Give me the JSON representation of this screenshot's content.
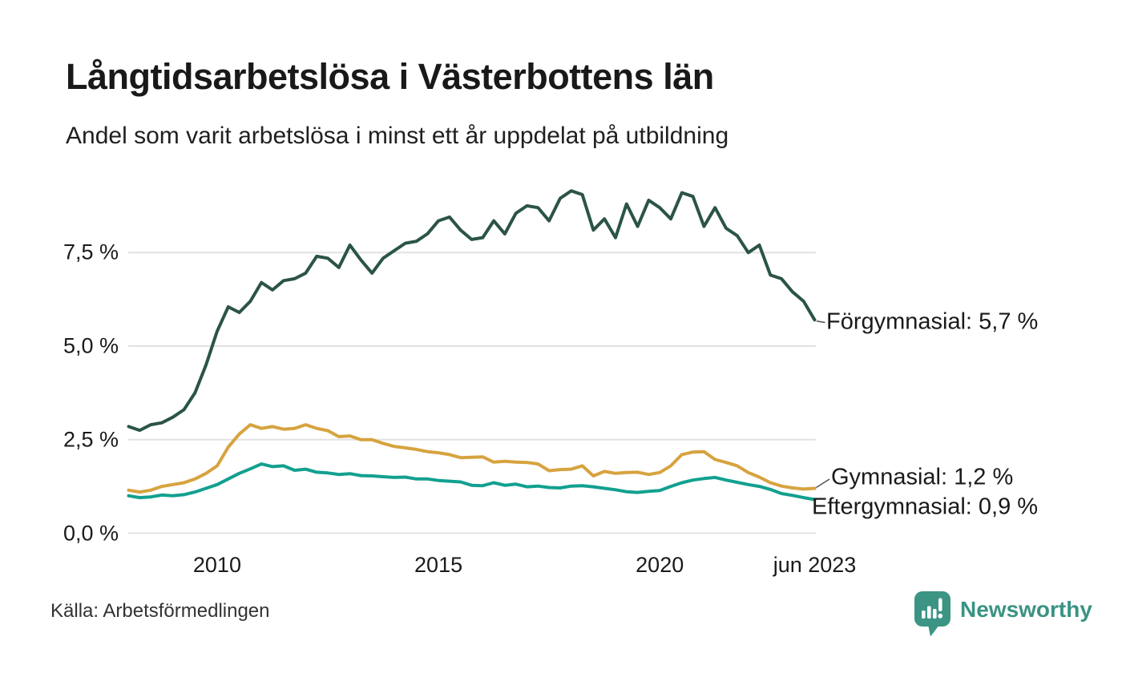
{
  "chart_data": {
    "type": "line",
    "title": "Långtidsarbetslösa i Västerbottens län",
    "subtitle": "Andel som varit arbetslösa i minst ett år uppdelat på utbildning",
    "xlabel": "",
    "ylabel": "",
    "x_unit": "decimal year, quarterly samples of monthly series",
    "x_start": 2008.0,
    "x_step": 0.25,
    "xlim": [
      2008.0,
      2023.5
    ],
    "ylim": [
      0,
      9.6
    ],
    "grid": "horizontal",
    "legend_position": "end-of-line labels, right side",
    "gridline_color": "#e2e2e2",
    "y_ticks": [
      {
        "value": 7.5,
        "label": "7,5 %"
      },
      {
        "value": 5.0,
        "label": "5,0 %"
      },
      {
        "value": 2.5,
        "label": "2,5 %"
      },
      {
        "value": 0.0,
        "label": "0,0 %"
      }
    ],
    "x_ticks": [
      {
        "value": 2010,
        "label": "2010"
      },
      {
        "value": 2015,
        "label": "2015"
      },
      {
        "value": 2020,
        "label": "2020"
      },
      {
        "value": 2023.5,
        "label": "jun 2023"
      }
    ],
    "series": [
      {
        "name": "Förgymnasial",
        "color": "#2b5446",
        "end_label": "Förgymnasial: 5,7 %",
        "end_value": 5.7,
        "values": [
          2.85,
          2.75,
          2.9,
          2.95,
          3.1,
          3.3,
          3.75,
          4.5,
          5.4,
          6.05,
          5.9,
          6.2,
          6.7,
          6.5,
          6.75,
          6.8,
          6.95,
          7.4,
          7.35,
          7.1,
          7.7,
          7.3,
          6.95,
          7.35,
          7.55,
          7.75,
          7.8,
          8.0,
          8.35,
          8.45,
          8.1,
          7.85,
          7.9,
          8.35,
          8.0,
          8.55,
          8.75,
          8.7,
          8.35,
          8.95,
          9.15,
          9.05,
          8.1,
          8.4,
          7.9,
          8.8,
          8.2,
          8.9,
          8.7,
          8.4,
          9.1,
          9.0,
          8.2,
          8.7,
          8.15,
          7.95,
          7.5,
          7.7,
          6.9,
          6.8,
          6.45,
          6.2,
          5.7
        ]
      },
      {
        "name": "Gymnasial",
        "color": "#d7a33f",
        "end_label": "Gymnasial: 1,2 %",
        "end_value": 1.2,
        "values": [
          1.15,
          1.1,
          1.15,
          1.25,
          1.3,
          1.35,
          1.45,
          1.6,
          1.8,
          2.3,
          2.65,
          2.9,
          2.8,
          2.85,
          2.78,
          2.8,
          2.9,
          2.8,
          2.74,
          2.58,
          2.6,
          2.5,
          2.5,
          2.4,
          2.32,
          2.28,
          2.24,
          2.18,
          2.15,
          2.1,
          2.02,
          2.03,
          2.04,
          1.9,
          1.92,
          1.9,
          1.89,
          1.85,
          1.67,
          1.7,
          1.71,
          1.8,
          1.53,
          1.65,
          1.6,
          1.62,
          1.63,
          1.57,
          1.62,
          1.8,
          2.1,
          2.17,
          2.18,
          1.97,
          1.89,
          1.8,
          1.62,
          1.5,
          1.35,
          1.26,
          1.21,
          1.18,
          1.2
        ]
      },
      {
        "name": "Eftergymnasial",
        "color": "#12a08f",
        "end_label": "Eftergymnasial: 0,9 %",
        "end_value": 0.9,
        "values": [
          1.0,
          0.95,
          0.97,
          1.02,
          1.0,
          1.03,
          1.1,
          1.2,
          1.3,
          1.45,
          1.6,
          1.72,
          1.85,
          1.78,
          1.8,
          1.68,
          1.71,
          1.63,
          1.61,
          1.57,
          1.59,
          1.54,
          1.53,
          1.51,
          1.49,
          1.5,
          1.45,
          1.45,
          1.41,
          1.39,
          1.37,
          1.28,
          1.27,
          1.35,
          1.28,
          1.31,
          1.24,
          1.26,
          1.22,
          1.21,
          1.26,
          1.27,
          1.24,
          1.2,
          1.16,
          1.11,
          1.09,
          1.12,
          1.14,
          1.25,
          1.35,
          1.42,
          1.46,
          1.49,
          1.42,
          1.36,
          1.3,
          1.25,
          1.17,
          1.06,
          1.01,
          0.95,
          0.9
        ]
      }
    ]
  },
  "footer": {
    "source": "Källa: Arbetsförmedlingen",
    "brand_name": "Newsworthy",
    "brand_color": "#3a9384"
  }
}
